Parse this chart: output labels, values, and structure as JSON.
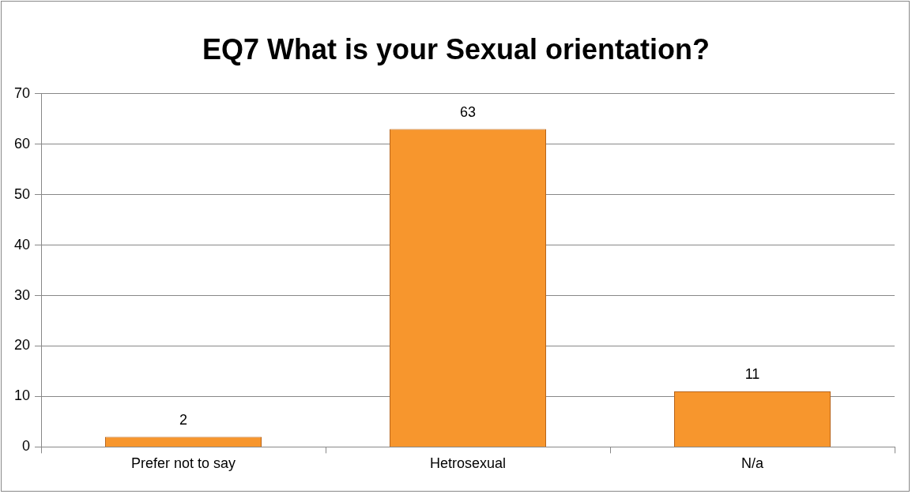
{
  "chart_data": {
    "type": "bar",
    "title": "EQ7 What is your Sexual orientation?",
    "categories": [
      "Prefer not to say",
      "Hetrosexual",
      "N/a"
    ],
    "values": [
      2,
      63,
      11
    ],
    "color": "#f7962d",
    "ylim": [
      0,
      70
    ],
    "yticks": [
      0,
      10,
      20,
      30,
      40,
      50,
      60,
      70
    ],
    "grid": "y",
    "data_labels": true
  }
}
